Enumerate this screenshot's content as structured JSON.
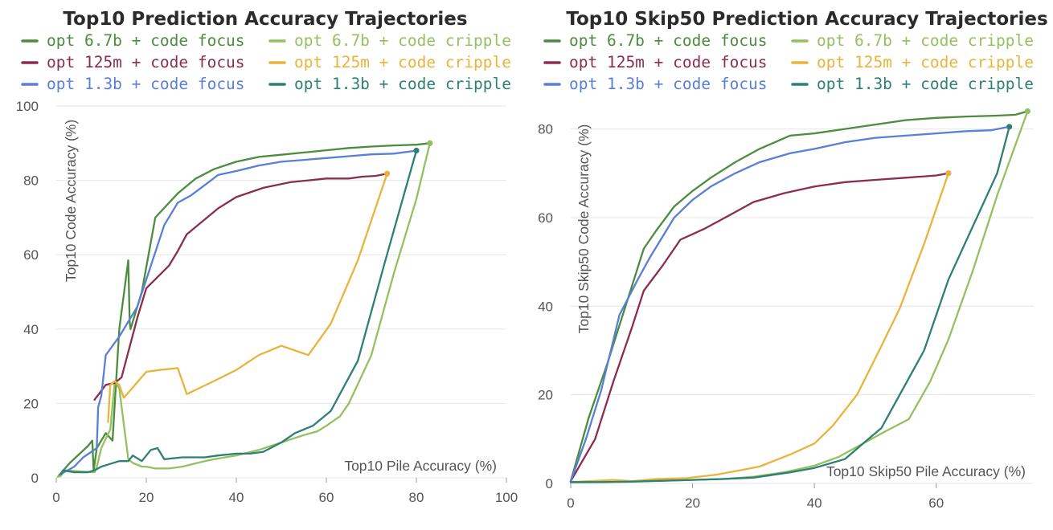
{
  "chart_data": [
    {
      "type": "line",
      "title": "Top10 Prediction Accuracy Trajectories",
      "xlabel": "Top10 Pile Accuracy (%)",
      "ylabel": "Top10 Code Accuracy (%)",
      "xlim": [
        0,
        100
      ],
      "ylim": [
        0,
        100
      ],
      "xticks": [
        0,
        20,
        40,
        60,
        80,
        100
      ],
      "yticks": [
        0,
        20,
        40,
        60,
        80,
        100
      ],
      "grid": true,
      "legend": "top",
      "series": [
        {
          "name": "opt 6.7b + code focus",
          "color": "#4c8c3f",
          "x": [
            0.5,
            3,
            7,
            8,
            8.3,
            9,
            11,
            12.5,
            14,
            16,
            16.3,
            16.5,
            19,
            22,
            27,
            31,
            35,
            40,
            45,
            50,
            55,
            60,
            65,
            70,
            75,
            80,
            83
          ],
          "y": [
            0.5,
            4,
            8.5,
            10,
            2,
            8,
            12,
            10,
            40,
            58.5,
            42,
            40,
            50,
            70,
            76.5,
            80.5,
            83,
            85,
            86.3,
            86.9,
            87.5,
            88.1,
            88.7,
            89.1,
            89.4,
            89.6,
            90
          ]
        },
        {
          "name": "opt 6.7b + code cripple",
          "color": "#94c15f",
          "x": [
            0.3,
            1,
            2,
            8.5,
            9,
            10,
            12,
            13,
            14,
            16,
            17,
            19,
            20,
            22,
            25,
            28,
            33,
            35,
            40,
            45,
            50,
            55,
            58,
            60,
            63,
            65,
            70,
            75,
            80,
            83
          ],
          "y": [
            0.3,
            0.5,
            2,
            1.5,
            3,
            8,
            13,
            26,
            24,
            5,
            4,
            3,
            3,
            2.5,
            2.5,
            3,
            4.5,
            5,
            6,
            7.5,
            9.5,
            11.5,
            12.5,
            14,
            16.5,
            20,
            33,
            55,
            75,
            90
          ]
        },
        {
          "name": "opt 125m + code focus",
          "color": "#8b2c52",
          "x": [
            8.5,
            11,
            13,
            14.5,
            18,
            20,
            25,
            27,
            29,
            33,
            36,
            40,
            46,
            52,
            56,
            60,
            65,
            68,
            71,
            73.5
          ],
          "y": [
            21,
            25,
            25.5,
            27,
            43,
            51,
            57,
            61,
            65.5,
            69.5,
            72.5,
            75.5,
            78,
            79.5,
            80,
            80.5,
            80.5,
            81,
            81.2,
            81.8
          ]
        },
        {
          "name": "opt 125m + code cripple",
          "color": "#e8b43c",
          "x": [
            11.5,
            12,
            13,
            14,
            15,
            20,
            23,
            27,
            29,
            35,
            40,
            45,
            50,
            56,
            61,
            67,
            73.5
          ],
          "y": [
            15,
            25,
            26,
            25,
            21.5,
            28.5,
            29,
            29.5,
            22.5,
            26,
            29,
            33,
            35.5,
            33,
            41.5,
            58.5,
            81.8
          ]
        },
        {
          "name": "opt 1.3b + code focus",
          "color": "#5a7fd6",
          "x": [
            1,
            4,
            6,
            9,
            9.3,
            10,
            11,
            14,
            18,
            21,
            24,
            27,
            30,
            36,
            40,
            45,
            50,
            55,
            60,
            65,
            70,
            75,
            80
          ],
          "y": [
            1,
            3,
            5.5,
            8,
            19,
            22,
            33,
            38,
            46,
            57,
            68,
            74,
            76,
            81.5,
            82.5,
            84,
            85,
            85.5,
            86,
            86.5,
            87,
            87.2,
            88
          ]
        },
        {
          "name": "opt 1.3b + code cripple",
          "color": "#2e7f74",
          "x": [
            1,
            1.5,
            4,
            7,
            8.5,
            10,
            14,
            16,
            17,
            19,
            21,
            22.5,
            24,
            28,
            33,
            36,
            40,
            43,
            46,
            50,
            53,
            57,
            61,
            67,
            73,
            80
          ],
          "y": [
            1,
            2,
            1.5,
            1.5,
            2,
            3,
            4.5,
            4.5,
            6,
            4.5,
            7.5,
            8,
            5,
            5.5,
            5.5,
            6,
            6.5,
            6.5,
            7,
            9.5,
            12,
            14,
            18,
            31.5,
            58,
            88
          ]
        }
      ]
    },
    {
      "type": "line",
      "title": "Top10 Skip50 Prediction Accuracy Trajectories",
      "xlabel": "Top10 Skip50 Pile Accuracy (%)",
      "ylabel": "Top10 Skip50 Code Accuracy (%)",
      "xlim": [
        0,
        76
      ],
      "ylim": [
        0,
        85
      ],
      "xticks": [
        0,
        20,
        40,
        60
      ],
      "yticks": [
        0,
        20,
        40,
        60,
        80
      ],
      "grid": true,
      "legend": "top",
      "series": [
        {
          "name": "opt 6.7b + code focus",
          "color": "#4c8c3f",
          "x": [
            0,
            3,
            6,
            9,
            12,
            14,
            17,
            20,
            23,
            27,
            31,
            36,
            40,
            45,
            50,
            55,
            60,
            65,
            70,
            73,
            75
          ],
          "y": [
            0.5,
            15,
            27,
            40,
            53,
            57,
            62.5,
            66,
            69,
            72.5,
            75.5,
            78.5,
            79,
            80,
            81,
            82,
            82.5,
            82.8,
            83,
            83.2,
            84
          ]
        },
        {
          "name": "opt 6.7b + code cripple",
          "color": "#94c15f",
          "x": [
            0,
            5,
            10,
            15,
            20,
            25,
            30,
            35,
            40,
            44,
            48,
            52,
            55.5,
            59,
            62,
            66,
            70,
            75
          ],
          "y": [
            0.2,
            0.3,
            0.5,
            0.6,
            0.8,
            1,
            1.5,
            2.5,
            4,
            6,
            9,
            12,
            14.5,
            23,
            32.5,
            48,
            65,
            84
          ]
        },
        {
          "name": "opt 125m + code focus",
          "color": "#8b2c52",
          "x": [
            0,
            4,
            7,
            10,
            12,
            15,
            18,
            22,
            26,
            30,
            35,
            40,
            45,
            50,
            55,
            60,
            62
          ],
          "y": [
            0.5,
            10,
            23,
            35,
            43.5,
            49,
            55,
            57.5,
            60.5,
            63.5,
            65.5,
            67,
            68,
            68.5,
            69,
            69.5,
            70
          ]
        },
        {
          "name": "opt 125m + code cripple",
          "color": "#e8b43c",
          "x": [
            0,
            3,
            7,
            10,
            14,
            19,
            24,
            28,
            31,
            36,
            40,
            43,
            47,
            51,
            54,
            58,
            62
          ],
          "y": [
            0.3,
            0.5,
            0.8,
            0.5,
            1,
            1.2,
            2,
            3,
            3.8,
            6.5,
            9,
            13,
            20,
            31,
            39.5,
            54,
            70
          ]
        },
        {
          "name": "opt 1.3b + code focus",
          "color": "#5a7fd6",
          "x": [
            0,
            2.5,
            5,
            8,
            11,
            13,
            17,
            20,
            23,
            27,
            31,
            36,
            40,
            45,
            50,
            55,
            60,
            65,
            69,
            72
          ],
          "y": [
            0.5,
            10,
            21,
            38,
            46,
            51,
            60,
            64,
            67,
            70,
            72.5,
            74.5,
            75.5,
            77,
            78,
            78.5,
            79,
            79.5,
            79.7,
            80.5
          ]
        },
        {
          "name": "opt 1.3b + code cripple",
          "color": "#2e7f74",
          "x": [
            0,
            5,
            10,
            15,
            20,
            25,
            30,
            36,
            40,
            45,
            48,
            51,
            54,
            58,
            62,
            66,
            70,
            72
          ],
          "y": [
            0.3,
            0.3,
            0.4,
            0.6,
            0.8,
            1,
            1.3,
            2.5,
            3.5,
            5.5,
            9,
            12.5,
            20,
            30,
            46,
            58,
            70,
            80.5
          ]
        }
      ]
    }
  ]
}
